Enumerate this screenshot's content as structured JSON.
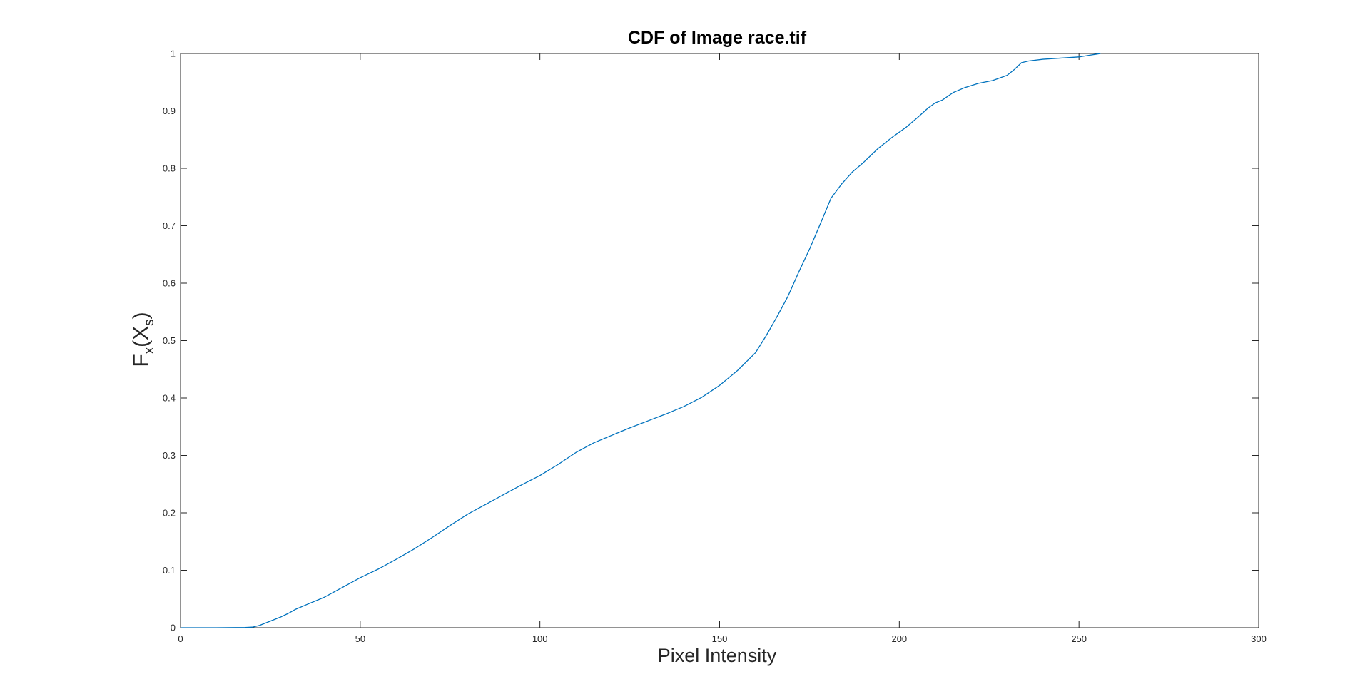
{
  "chart_data": {
    "type": "line",
    "title": "CDF of Image race.tif",
    "xlabel": "Pixel Intensity",
    "ylabel": {
      "base": "F",
      "sub1": "x",
      "open": "(X",
      "sub2": "s",
      "close": ")"
    },
    "xlim": [
      0,
      300
    ],
    "ylim": [
      0,
      1
    ],
    "xticks": [
      0,
      50,
      100,
      150,
      200,
      250,
      300
    ],
    "yticks": [
      0,
      0.1,
      0.2,
      0.3,
      0.4,
      0.5,
      0.6,
      0.7,
      0.8,
      0.9,
      1
    ],
    "xtick_labels": [
      "0",
      "50",
      "100",
      "150",
      "200",
      "250",
      "300"
    ],
    "ytick_labels": [
      "0",
      "0.1",
      "0.2",
      "0.3",
      "0.4",
      "0.5",
      "0.6",
      "0.7",
      "0.8",
      "0.9",
      "1"
    ],
    "grid": false,
    "box": true,
    "series": [
      {
        "color": "#0072bd",
        "x": [
          0,
          10,
          18,
          20,
          22,
          24,
          26,
          28,
          30,
          32,
          35,
          40,
          45,
          50,
          55,
          60,
          65,
          70,
          75,
          80,
          85,
          90,
          95,
          100,
          105,
          110,
          115,
          120,
          125,
          130,
          135,
          140,
          145,
          150,
          155,
          160,
          163,
          166,
          169,
          172,
          175,
          178,
          181,
          184,
          187,
          190,
          194,
          198,
          202,
          205,
          208,
          210,
          212,
          215,
          218,
          222,
          226,
          230,
          232,
          234,
          236,
          240,
          245,
          250,
          253,
          255,
          256
        ],
        "y": [
          0,
          0,
          0.0005,
          0.001,
          0.004,
          0.009,
          0.014,
          0.019,
          0.025,
          0.032,
          0.04,
          0.053,
          0.07,
          0.087,
          0.102,
          0.119,
          0.137,
          0.157,
          0.178,
          0.198,
          0.215,
          0.232,
          0.249,
          0.265,
          0.284,
          0.305,
          0.322,
          0.335,
          0.348,
          0.36,
          0.372,
          0.385,
          0.401,
          0.422,
          0.448,
          0.479,
          0.509,
          0.542,
          0.577,
          0.619,
          0.659,
          0.703,
          0.748,
          0.773,
          0.794,
          0.81,
          0.834,
          0.854,
          0.872,
          0.888,
          0.905,
          0.914,
          0.919,
          0.932,
          0.94,
          0.948,
          0.953,
          0.962,
          0.972,
          0.984,
          0.987,
          0.99,
          0.992,
          0.994,
          0.997,
          0.999,
          1.0
        ]
      }
    ]
  }
}
